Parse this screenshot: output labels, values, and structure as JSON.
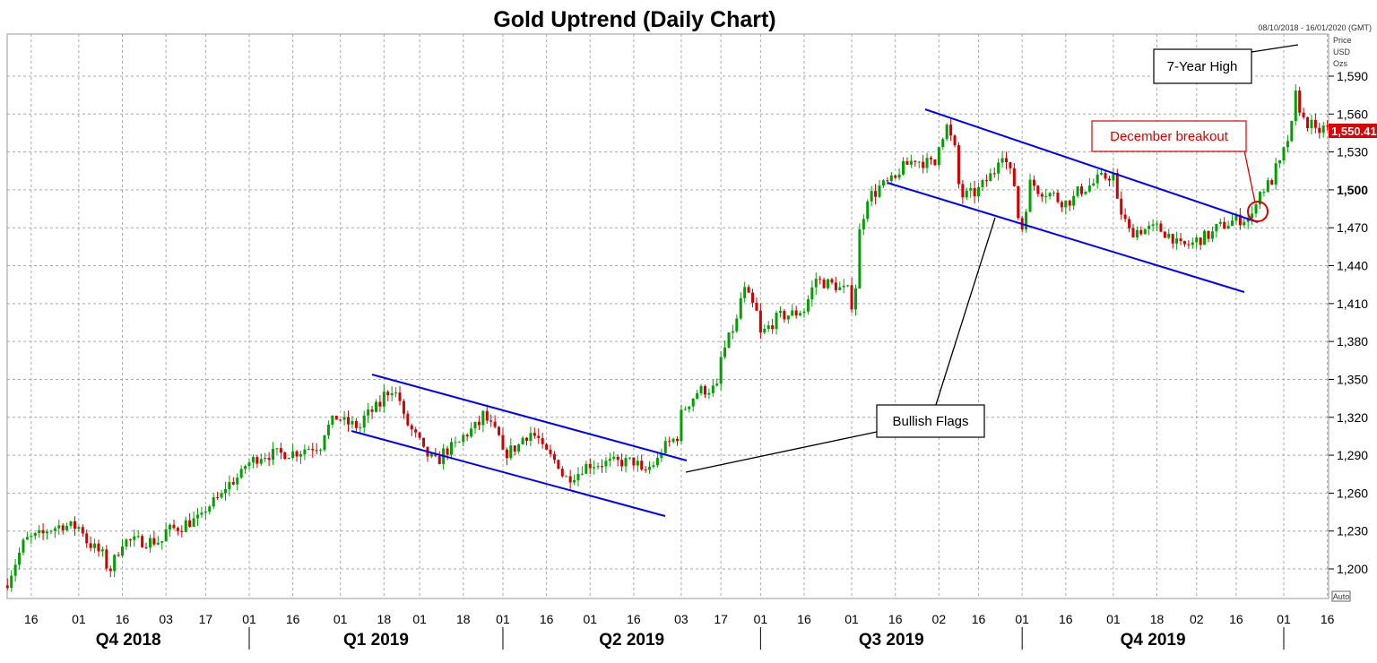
{
  "chart_data": {
    "type": "candlestick",
    "title": "Gold Uptrend (Daily Chart)",
    "date_range_label": "08/10/2018 - 16/01/2020 (GMT)",
    "y_axis_caption": [
      "Price",
      "USD",
      "Ozs"
    ],
    "ylim": [
      1180,
      1620
    ],
    "y_ticks": [
      {
        "value": 1200,
        "label": "1,200"
      },
      {
        "value": 1230,
        "label": "1,230"
      },
      {
        "value": 1260,
        "label": "1,260"
      },
      {
        "value": 1290,
        "label": "1,290"
      },
      {
        "value": 1320,
        "label": "1,320"
      },
      {
        "value": 1350,
        "label": "1,350"
      },
      {
        "value": 1380,
        "label": "1,380"
      },
      {
        "value": 1410,
        "label": "1,410"
      },
      {
        "value": 1440,
        "label": "1,440"
      },
      {
        "value": 1470,
        "label": "1,470"
      },
      {
        "value": 1500,
        "label": "1,500"
      },
      {
        "value": 1530,
        "label": "1,530"
      },
      {
        "value": 1560,
        "label": "1,560"
      },
      {
        "value": 1590,
        "label": "1,590"
      }
    ],
    "x_ticks": [
      {
        "date": "2018-10-16",
        "label": "16"
      },
      {
        "date": "2018-11-01",
        "label": "01"
      },
      {
        "date": "2018-11-16",
        "label": "16"
      },
      {
        "date": "2018-12-03",
        "label": "03"
      },
      {
        "date": "2018-12-17",
        "label": "17"
      },
      {
        "date": "2019-01-01",
        "label": "01"
      },
      {
        "date": "2019-01-16",
        "label": "16"
      },
      {
        "date": "2019-02-01",
        "label": "01"
      },
      {
        "date": "2019-02-18",
        "label": "18"
      },
      {
        "date": "2019-03-01",
        "label": "01"
      },
      {
        "date": "2019-03-18",
        "label": "18"
      },
      {
        "date": "2019-04-01",
        "label": "01"
      },
      {
        "date": "2019-04-16",
        "label": "16"
      },
      {
        "date": "2019-05-01",
        "label": "01"
      },
      {
        "date": "2019-05-16",
        "label": "16"
      },
      {
        "date": "2019-06-03",
        "label": "03"
      },
      {
        "date": "2019-06-17",
        "label": "17"
      },
      {
        "date": "2019-07-01",
        "label": "01"
      },
      {
        "date": "2019-07-16",
        "label": "16"
      },
      {
        "date": "2019-08-01",
        "label": "01"
      },
      {
        "date": "2019-08-16",
        "label": "16"
      },
      {
        "date": "2019-09-02",
        "label": "02"
      },
      {
        "date": "2019-09-16",
        "label": "16"
      },
      {
        "date": "2019-10-01",
        "label": "01"
      },
      {
        "date": "2019-10-16",
        "label": "16"
      },
      {
        "date": "2019-11-01",
        "label": "01"
      },
      {
        "date": "2019-11-18",
        "label": "18"
      },
      {
        "date": "2019-12-02",
        "label": "02"
      },
      {
        "date": "2019-12-16",
        "label": "16"
      },
      {
        "date": "2020-01-01",
        "label": "01"
      },
      {
        "date": "2020-01-16",
        "label": "16"
      }
    ],
    "quarters": [
      {
        "label": "Q4 2018",
        "start": "2018-10-01",
        "end": "2019-01-01"
      },
      {
        "label": "Q1 2019",
        "start": "2019-01-01",
        "end": "2019-04-01"
      },
      {
        "label": "Q2 2019",
        "start": "2019-04-01",
        "end": "2019-07-01"
      },
      {
        "label": "Q3 2019",
        "start": "2019-07-01",
        "end": "2019-10-01"
      },
      {
        "label": "Q4 2019",
        "start": "2019-10-01",
        "end": "2020-01-01"
      }
    ],
    "approx_close_path": [
      [
        "2018-10-08",
        1190
      ],
      [
        "2018-10-12",
        1220
      ],
      [
        "2018-10-26",
        1235
      ],
      [
        "2018-11-01",
        1233
      ],
      [
        "2018-11-13",
        1200
      ],
      [
        "2018-11-16",
        1222
      ],
      [
        "2018-11-30",
        1222
      ],
      [
        "2018-12-03",
        1230
      ],
      [
        "2018-12-14",
        1240
      ],
      [
        "2018-12-17",
        1248
      ],
      [
        "2018-12-31",
        1282
      ],
      [
        "2019-01-04",
        1290
      ],
      [
        "2019-01-16",
        1292
      ],
      [
        "2019-01-25",
        1298
      ],
      [
        "2019-01-31",
        1320
      ],
      [
        "2019-02-08",
        1312
      ],
      [
        "2019-02-20",
        1343
      ],
      [
        "2019-03-01",
        1300
      ],
      [
        "2019-03-07",
        1285
      ],
      [
        "2019-03-18",
        1305
      ],
      [
        "2019-03-25",
        1322
      ],
      [
        "2019-04-01",
        1290
      ],
      [
        "2019-04-10",
        1308
      ],
      [
        "2019-04-23",
        1272
      ],
      [
        "2019-05-01",
        1283
      ],
      [
        "2019-05-16",
        1285
      ],
      [
        "2019-05-20",
        1275
      ],
      [
        "2019-05-31",
        1305
      ],
      [
        "2019-06-04",
        1328
      ],
      [
        "2019-06-07",
        1340
      ],
      [
        "2019-06-14",
        1343
      ],
      [
        "2019-06-20",
        1390
      ],
      [
        "2019-06-25",
        1420
      ],
      [
        "2019-07-01",
        1385
      ],
      [
        "2019-07-05",
        1398
      ],
      [
        "2019-07-16",
        1405
      ],
      [
        "2019-07-19",
        1430
      ],
      [
        "2019-07-31",
        1420
      ],
      [
        "2019-08-01",
        1410
      ],
      [
        "2019-08-07",
        1495
      ],
      [
        "2019-08-16",
        1508
      ],
      [
        "2019-08-23",
        1525
      ],
      [
        "2019-08-30",
        1520
      ],
      [
        "2019-09-04",
        1550
      ],
      [
        "2019-09-10",
        1495
      ],
      [
        "2019-09-16",
        1500
      ],
      [
        "2019-09-24",
        1530
      ],
      [
        "2019-10-01",
        1470
      ],
      [
        "2019-10-03",
        1505
      ],
      [
        "2019-10-16",
        1490
      ],
      [
        "2019-10-25",
        1505
      ],
      [
        "2019-11-01",
        1512
      ],
      [
        "2019-11-07",
        1467
      ],
      [
        "2019-11-18",
        1470
      ],
      [
        "2019-11-26",
        1455
      ],
      [
        "2019-12-02",
        1460
      ],
      [
        "2019-12-13",
        1475
      ],
      [
        "2019-12-20",
        1478
      ],
      [
        "2019-12-24",
        1498
      ],
      [
        "2019-12-31",
        1520
      ],
      [
        "2020-01-03",
        1550
      ],
      [
        "2020-01-06",
        1575
      ],
      [
        "2020-01-08",
        1555
      ],
      [
        "2020-01-13",
        1545
      ],
      [
        "2020-01-16",
        1550.41
      ]
    ],
    "last_price_label": "1,550.41",
    "annotations": {
      "seven_year_high": "7-Year High",
      "december_breakout": "December breakout",
      "bullish_flags": "Bullish Flags"
    },
    "auto_button": "Auto",
    "colors": {
      "up": "#00a000",
      "down": "#d00000",
      "trendline": "#0000ff",
      "breakout": "#e00000",
      "last_price_bg": "#e00000"
    },
    "grid": true
  }
}
